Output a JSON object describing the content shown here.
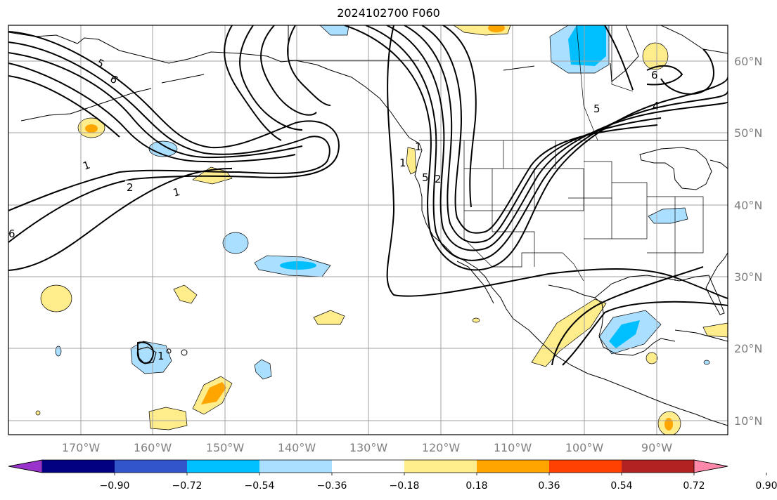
{
  "title": "2024102700 F060",
  "map": {
    "lon_ticks": [
      "170°W",
      "160°W",
      "150°W",
      "140°W",
      "130°W",
      "120°W",
      "110°W",
      "100°W",
      "90°W"
    ],
    "lat_ticks": [
      "60°N",
      "50°N",
      "40°N",
      "30°N",
      "20°N",
      "10°N"
    ],
    "contour_labels": [
      "1",
      "2",
      "1",
      "5",
      "6",
      "4",
      "1",
      "2",
      "5",
      "6",
      "1",
      "5",
      "6",
      "1"
    ]
  },
  "colorbar": {
    "colors": [
      "#9933cc",
      "#000080",
      "#3355cc",
      "#00bfff",
      "#aadfff",
      "#ffffff",
      "#ffec8b",
      "#ffa500",
      "#ff4000",
      "#b22222",
      "#ff88aa"
    ],
    "labels": [
      "−0.90",
      "−0.72",
      "−0.54",
      "−0.36",
      "−0.18",
      "0.18",
      "0.36",
      "0.54",
      "0.72",
      "0.90"
    ]
  },
  "fill_colors": {
    "pos_light": "#ffec8b",
    "pos_mid": "#ffa500",
    "neg_light": "#aadfff",
    "neg_mid": "#00bfff"
  }
}
